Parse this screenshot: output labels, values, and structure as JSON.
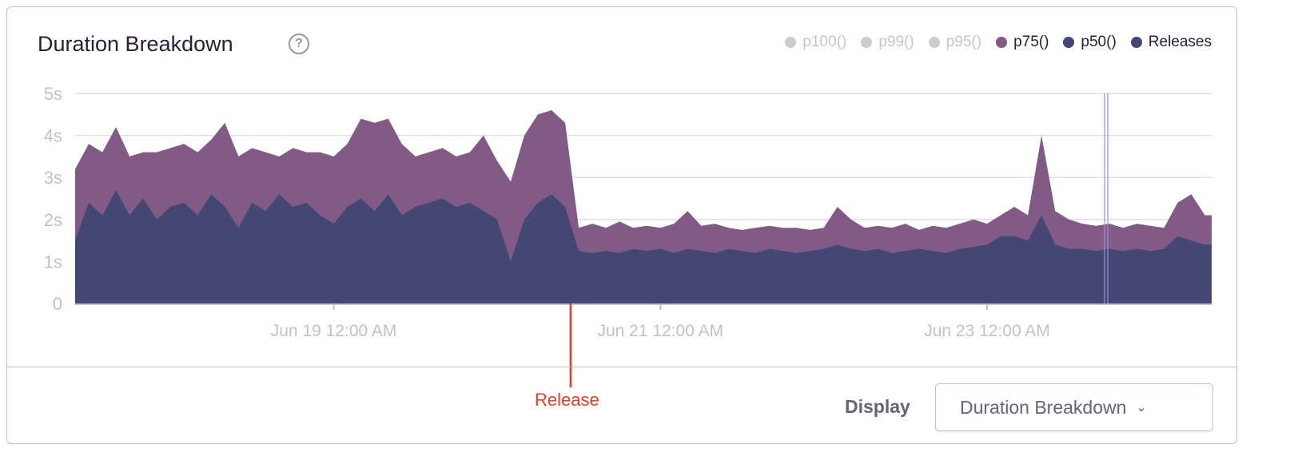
{
  "header": {
    "title": "Duration Breakdown",
    "help_icon": "?"
  },
  "legend": [
    {
      "label": "p100()",
      "color": "#cccccc",
      "active": false
    },
    {
      "label": "p99()",
      "color": "#cccccc",
      "active": false
    },
    {
      "label": "p95()",
      "color": "#cccccc",
      "active": false
    },
    {
      "label": "p75()",
      "color": "#815a86",
      "active": true
    },
    {
      "label": "p50()",
      "color": "#444674",
      "active": true
    },
    {
      "label": "Releases",
      "color": "#444674",
      "active": true
    }
  ],
  "chart_data": {
    "type": "area",
    "title": "Duration Breakdown",
    "x_unit": "hours since Jun 17 10:00 AM",
    "x": [
      0,
      2,
      4,
      6,
      8,
      10,
      12,
      14,
      16,
      18,
      20,
      22,
      24,
      26,
      28,
      30,
      32,
      34,
      36,
      38,
      40,
      42,
      44,
      46,
      48,
      50,
      52,
      54,
      56,
      58,
      60,
      62,
      64,
      66,
      68,
      70,
      72,
      74,
      76,
      78,
      80,
      82,
      84,
      86,
      88,
      90,
      92,
      94,
      96,
      98,
      100,
      102,
      104,
      106,
      108,
      110,
      112,
      114,
      116,
      118,
      120,
      122,
      124,
      126,
      128,
      130,
      132,
      134,
      136,
      138,
      140,
      142,
      144,
      146,
      148,
      150,
      152,
      154,
      156,
      158,
      160,
      162,
      164,
      166
    ],
    "series": [
      {
        "name": "p75()",
        "color": "#815a86",
        "values": [
          3.2,
          3.8,
          3.6,
          4.2,
          3.5,
          3.6,
          3.6,
          3.7,
          3.8,
          3.6,
          3.9,
          4.3,
          3.5,
          3.7,
          3.6,
          3.5,
          3.7,
          3.6,
          3.6,
          3.5,
          3.8,
          4.4,
          4.3,
          4.4,
          3.8,
          3.5,
          3.6,
          3.7,
          3.5,
          3.6,
          4.0,
          3.4,
          2.9,
          4.0,
          4.5,
          4.6,
          4.3,
          1.8,
          1.9,
          1.8,
          1.95,
          1.8,
          1.85,
          1.8,
          1.9,
          2.2,
          1.85,
          1.9,
          1.8,
          1.75,
          1.8,
          1.85,
          1.8,
          1.8,
          1.75,
          1.8,
          2.3,
          2.0,
          1.8,
          1.85,
          1.8,
          1.9,
          1.75,
          1.85,
          1.8,
          1.9,
          2.0,
          1.9,
          2.1,
          2.3,
          2.1,
          4.0,
          2.2,
          2.0,
          1.9,
          1.85,
          1.9,
          1.8,
          1.9,
          1.85,
          1.8,
          2.4,
          2.6,
          2.1
        ]
      },
      {
        "name": "p50()",
        "color": "#444674",
        "values": [
          1.5,
          2.4,
          2.1,
          2.7,
          2.1,
          2.5,
          2.0,
          2.3,
          2.4,
          2.1,
          2.6,
          2.3,
          1.8,
          2.4,
          2.2,
          2.6,
          2.3,
          2.4,
          2.1,
          1.9,
          2.3,
          2.5,
          2.2,
          2.6,
          2.1,
          2.3,
          2.4,
          2.5,
          2.3,
          2.4,
          2.2,
          2.0,
          1.0,
          2.0,
          2.4,
          2.6,
          2.3,
          1.25,
          1.2,
          1.25,
          1.2,
          1.3,
          1.25,
          1.3,
          1.2,
          1.3,
          1.25,
          1.2,
          1.3,
          1.25,
          1.2,
          1.3,
          1.25,
          1.2,
          1.25,
          1.3,
          1.4,
          1.3,
          1.25,
          1.3,
          1.2,
          1.25,
          1.3,
          1.25,
          1.2,
          1.3,
          1.35,
          1.4,
          1.6,
          1.6,
          1.5,
          2.1,
          1.4,
          1.3,
          1.3,
          1.25,
          1.3,
          1.25,
          1.3,
          1.25,
          1.3,
          1.6,
          1.5,
          1.4
        ]
      }
    ],
    "ylim": [
      0,
      5
    ],
    "y_ticks": [
      "0",
      "1s",
      "2s",
      "3s",
      "4s",
      "5s"
    ],
    "x_ticks": [
      {
        "label": "Jun 19 12:00 AM",
        "hour": 38
      },
      {
        "label": "Jun 21 12:00 AM",
        "hour": 86
      },
      {
        "label": "Jun 23 12:00 AM",
        "hour": 134
      }
    ],
    "x_range": [
      0,
      167
    ],
    "releases": [
      {
        "hour": 151.5
      }
    ],
    "annotation": {
      "label": "Release",
      "hour": 72.8,
      "color": "#e03e2f"
    },
    "grid": true
  },
  "footer": {
    "display_label": "Display",
    "dropdown_value": "Duration Breakdown"
  }
}
